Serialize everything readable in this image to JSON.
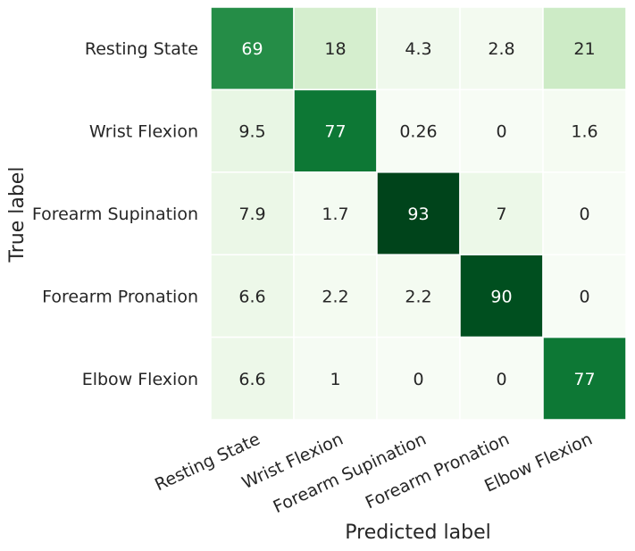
{
  "chart_data": {
    "type": "heatmap",
    "title": "",
    "xlabel": "Predicted label",
    "ylabel": "True label",
    "row_labels": [
      "Resting State",
      "Wrist Flexion",
      "Forearm Supination",
      "Forearm Pronation",
      "Elbow Flexion"
    ],
    "col_labels": [
      "Resting State",
      "Wrist Flexion",
      "Forearm Supination",
      "Forearm Pronation",
      "Elbow Flexion"
    ],
    "values": [
      [
        69,
        18,
        4.3,
        2.8,
        21
      ],
      [
        9.5,
        77,
        0.26,
        0,
        1.6
      ],
      [
        7.9,
        1.7,
        93,
        7,
        0
      ],
      [
        6.6,
        2.2,
        2.2,
        90,
        0
      ],
      [
        6.6,
        1,
        0,
        0,
        77
      ]
    ],
    "value_labels": [
      [
        "69",
        "18",
        "4.3",
        "2.8",
        "21"
      ],
      [
        "9.5",
        "77",
        "0.26",
        "0",
        "1.6"
      ],
      [
        "7.9",
        "1.7",
        "93",
        "7",
        "0"
      ],
      [
        "6.6",
        "2.2",
        "2.2",
        "90",
        "0"
      ],
      [
        "6.6",
        "1",
        "0",
        "0",
        "77"
      ]
    ],
    "colormap": "Greens",
    "color_low": "#f7fcf5",
    "color_high": "#00441b",
    "value_range": [
      0,
      93
    ],
    "grid_line_color": "#ffffff",
    "colorbar": false
  }
}
